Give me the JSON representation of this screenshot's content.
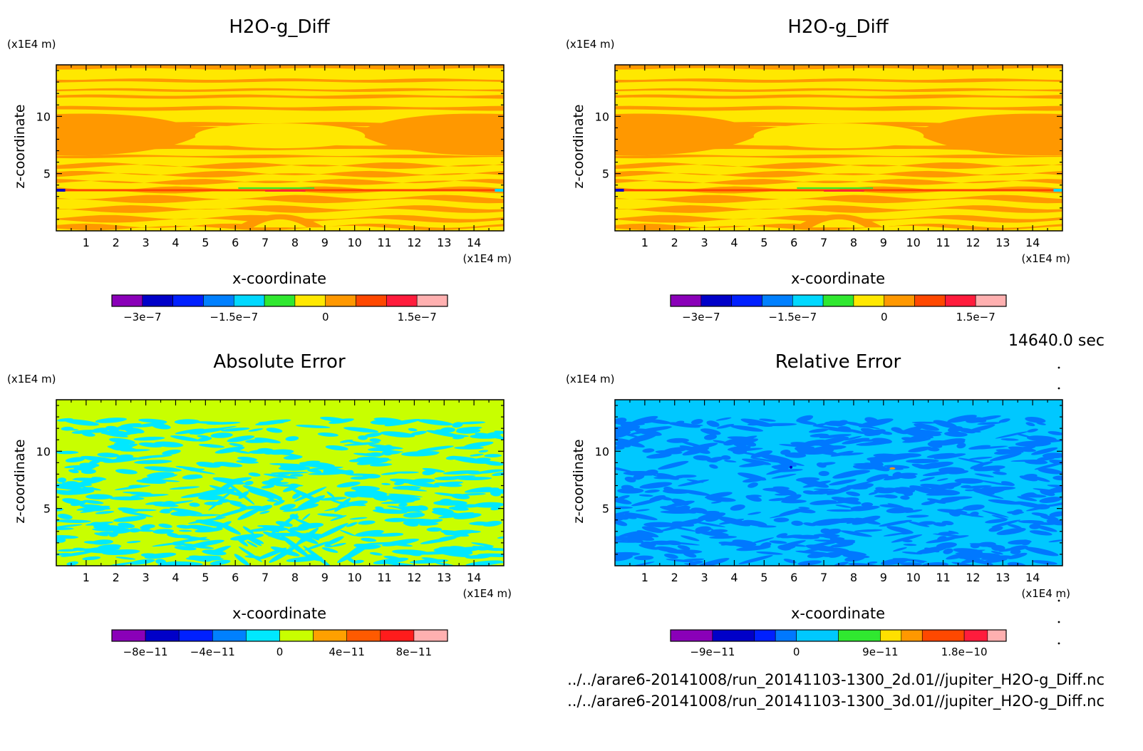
{
  "chart_data": [
    {
      "type": "heatmap",
      "title": "H2O-g_Diff",
      "xlabel": "x-coordinate",
      "ylabel": "z-coordinate",
      "x_unit": "(x1E4 m)",
      "y_unit": "(x1E4 m)",
      "xticks": [
        "1",
        "2",
        "3",
        "4",
        "5",
        "6",
        "7",
        "8",
        "9",
        "10",
        "11",
        "12",
        "13",
        "14"
      ],
      "yticks": [
        "5",
        "10"
      ],
      "xlim": [
        0,
        15
      ],
      "ylim": [
        0,
        14.5
      ],
      "colorbar": {
        "colors": [
          "#8a00b8",
          "#0000c8",
          "#0020ff",
          "#0080ff",
          "#00d8ff",
          "#30e830",
          "#ffe800",
          "#ff9800",
          "#ff4800",
          "#ff1c3c",
          "#ffb0b0"
        ],
        "levels": [
          -3.5e-07,
          -3e-07,
          -2.5e-07,
          -2e-07,
          -1.5e-07,
          -1e-07,
          -5e-08,
          0,
          5e-08,
          1e-07,
          1.5e-07,
          2e-07
        ],
        "tick_values": [
          -3e-07,
          -1.5e-07,
          0,
          1.5e-07
        ],
        "tick_labels": [
          "−3e−7",
          "−1.5e−7",
          "0",
          "1.5e−7"
        ]
      },
      "pattern": "h2o"
    },
    {
      "type": "heatmap",
      "title": "H2O-g_Diff",
      "xlabel": "x-coordinate",
      "ylabel": "z-coordinate",
      "x_unit": "(x1E4 m)",
      "y_unit": "(x1E4 m)",
      "xticks": [
        "1",
        "2",
        "3",
        "4",
        "5",
        "6",
        "7",
        "8",
        "9",
        "10",
        "11",
        "12",
        "13",
        "14"
      ],
      "yticks": [
        "5",
        "10"
      ],
      "xlim": [
        0,
        15
      ],
      "ylim": [
        0,
        14.5
      ],
      "colorbar": {
        "colors": [
          "#8a00b8",
          "#0000c8",
          "#0020ff",
          "#0080ff",
          "#00d8ff",
          "#30e830",
          "#ffe800",
          "#ff9800",
          "#ff4800",
          "#ff1c3c",
          "#ffb0b0"
        ],
        "levels": [
          -3.5e-07,
          -3e-07,
          -2.5e-07,
          -2e-07,
          -1.5e-07,
          -1e-07,
          -5e-08,
          0,
          5e-08,
          1e-07,
          1.5e-07,
          2e-07
        ],
        "tick_values": [
          -3e-07,
          -1.5e-07,
          0,
          1.5e-07
        ],
        "tick_labels": [
          "−3e−7",
          "−1.5e−7",
          "0",
          "1.5e−7"
        ]
      },
      "pattern": "h2o"
    },
    {
      "type": "heatmap",
      "title": "Absolute Error",
      "xlabel": "x-coordinate",
      "ylabel": "z-coordinate",
      "x_unit": "(x1E4 m)",
      "y_unit": "(x1E4 m)",
      "xticks": [
        "1",
        "2",
        "3",
        "4",
        "5",
        "6",
        "7",
        "8",
        "9",
        "10",
        "11",
        "12",
        "13",
        "14"
      ],
      "yticks": [
        "5",
        "10"
      ],
      "xlim": [
        0,
        15
      ],
      "ylim": [
        0,
        14.5
      ],
      "colorbar": {
        "colors": [
          "#8a00b8",
          "#0000c8",
          "#0020ff",
          "#0080ff",
          "#00e8ff",
          "#c8ff00",
          "#ffa000",
          "#ff5a00",
          "#ff1c1c",
          "#ffb0b0"
        ],
        "levels": [
          -1e-10,
          -8e-11,
          -6e-11,
          -4e-11,
          -2e-11,
          0,
          2e-11,
          4e-11,
          6e-11,
          8e-11,
          1e-10
        ],
        "tick_values": [
          -8e-11,
          -4e-11,
          0,
          4e-11,
          8e-11
        ],
        "tick_labels": [
          "−8e−11",
          "−4e−11",
          "0",
          "4e−11",
          "8e−11"
        ]
      },
      "pattern": "abs"
    },
    {
      "type": "heatmap",
      "title": "Relative Error",
      "xlabel": "x-coordinate",
      "ylabel": "z-coordinate",
      "x_unit": "(x1E4 m)",
      "y_unit": "(x1E4 m)",
      "xticks": [
        "1",
        "2",
        "3",
        "4",
        "5",
        "6",
        "7",
        "8",
        "9",
        "10",
        "11",
        "12",
        "13",
        "14"
      ],
      "yticks": [
        "5",
        "10"
      ],
      "xlim": [
        0,
        15
      ],
      "ylim": [
        0,
        14.5
      ],
      "colorbar": {
        "colors": [
          "#8a00b8",
          "#0000c8",
          "#0020ff",
          "#0078ff",
          "#00c8ff",
          "#30e830",
          "#ffe000",
          "#ff9800",
          "#ff4800",
          "#ff1c3c",
          "#ffb0b0"
        ],
        "levels": [
          -1.35e-10,
          -9e-11,
          -4.5e-11,
          -2.25e-11,
          0,
          4.5e-11,
          9e-11,
          1.125e-10,
          1.35e-10,
          1.8e-10,
          2.05e-10,
          2.25e-10
        ],
        "tick_values": [
          -9e-11,
          0,
          9e-11,
          1.8e-10
        ],
        "tick_labels": [
          "−9e−11",
          "0",
          "9e−11",
          "1.8e−10"
        ]
      },
      "pattern": "rel"
    }
  ],
  "time_label": "14640.0 sec",
  "files": [
    "../../arare6-20141008/run_20141103-1300_2d.01//jupiter_H2O-g_Diff.nc",
    "../../arare6-20141008/run_20141103-1300_3d.01//jupiter_H2O-g_Diff.nc"
  ]
}
